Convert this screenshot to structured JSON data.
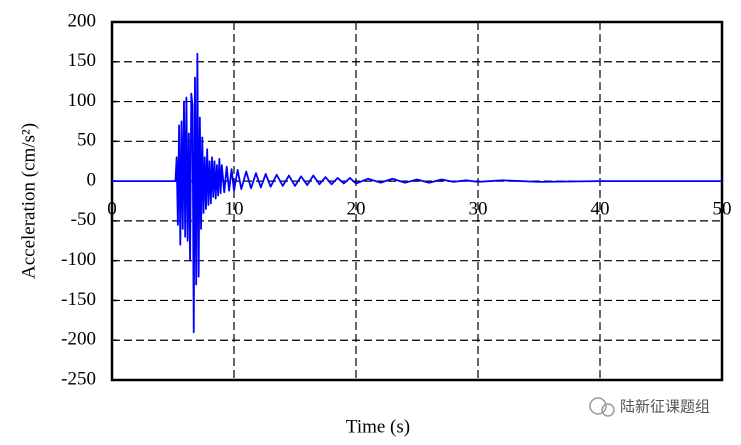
{
  "chart_data": {
    "type": "line",
    "x_label": "Time (s)",
    "y_label": "Acceleration (cm/s²)",
    "x": [
      0,
      5.2,
      5.3,
      5.4,
      5.5,
      5.6,
      5.7,
      5.8,
      5.9,
      6.0,
      6.1,
      6.2,
      6.3,
      6.4,
      6.5,
      6.6,
      6.7,
      6.8,
      6.9,
      7.0,
      7.1,
      7.2,
      7.3,
      7.4,
      7.5,
      7.6,
      7.7,
      7.8,
      7.9,
      8.0,
      8.1,
      8.2,
      8.3,
      8.4,
      8.5,
      8.6,
      8.7,
      8.8,
      8.9,
      9.0,
      9.2,
      9.4,
      9.6,
      9.8,
      10.0,
      10.3,
      10.6,
      11,
      11.4,
      11.8,
      12.2,
      12.6,
      13,
      13.5,
      14,
      14.5,
      15,
      15.5,
      16,
      16.5,
      17,
      17.5,
      18,
      18.5,
      19,
      19.5,
      20,
      21,
      22,
      23,
      24,
      25,
      26,
      27,
      28,
      29,
      30,
      32,
      35,
      40,
      45,
      50
    ],
    "series": [
      {
        "color": "#0000ff",
        "values": [
          0,
          0,
          30,
          -55,
          70,
          -80,
          75,
          -60,
          100,
          -70,
          105,
          -75,
          60,
          -100,
          110,
          95,
          -190,
          130,
          -130,
          160,
          -120,
          80,
          -60,
          55,
          -40,
          30,
          -35,
          40,
          -30,
          25,
          -28,
          30,
          -20,
          25,
          -22,
          20,
          -18,
          28,
          -15,
          20,
          -14,
          18,
          -12,
          15,
          -12,
          14,
          -10,
          12,
          -9,
          10,
          -8,
          9,
          -7,
          8,
          -6,
          7,
          -6,
          6,
          -5,
          7,
          -4,
          5,
          -4,
          4,
          -3,
          4,
          -3,
          3,
          -2,
          3,
          -2,
          2,
          -2,
          2,
          -1,
          1,
          -1,
          1,
          -1,
          0,
          0,
          0
        ]
      }
    ],
    "xlim": [
      0,
      50
    ],
    "xticks": [
      0,
      10,
      20,
      30,
      40,
      50
    ],
    "ylim": [
      -250,
      200
    ],
    "yticks": [
      -250,
      -200,
      -150,
      -100,
      -50,
      0,
      50,
      100,
      150,
      200
    ],
    "grid": true
  },
  "watermark": "陆新征课题组"
}
